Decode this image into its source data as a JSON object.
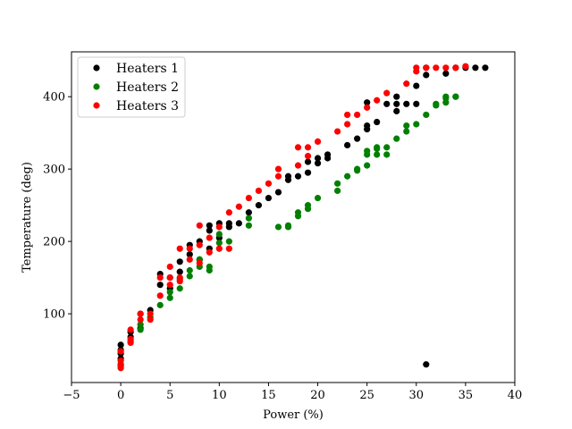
{
  "chart_data": {
    "type": "scatter",
    "xlabel": "Power (%)",
    "ylabel": "Temperature (deg)",
    "xlim": [
      -5,
      40
    ],
    "ylim": [
      5,
      462
    ],
    "xticks": [
      "−5",
      "0",
      "5",
      "10",
      "15",
      "20",
      "25",
      "30",
      "35",
      "40"
    ],
    "xtick_values": [
      -5,
      0,
      5,
      10,
      15,
      20,
      25,
      30,
      35,
      40
    ],
    "yticks": [
      "100",
      "200",
      "300",
      "400"
    ],
    "ytick_values": [
      100,
      200,
      300,
      400
    ],
    "grid": false,
    "legend": "top-left",
    "series": [
      {
        "name": "Heaters 1",
        "color": "#000000",
        "points": [
          [
            0,
            57
          ],
          [
            0,
            50
          ],
          [
            0,
            45
          ],
          [
            0,
            38
          ],
          [
            0,
            30
          ],
          [
            1,
            68
          ],
          [
            1,
            75
          ],
          [
            2,
            80
          ],
          [
            2,
            100
          ],
          [
            3,
            105
          ],
          [
            4,
            140
          ],
          [
            4,
            155
          ],
          [
            5,
            150
          ],
          [
            5,
            135
          ],
          [
            6,
            158
          ],
          [
            6,
            172
          ],
          [
            7,
            195
          ],
          [
            7,
            182
          ],
          [
            8,
            200
          ],
          [
            8,
            175
          ],
          [
            9,
            222
          ],
          [
            9,
            215
          ],
          [
            9,
            190
          ],
          [
            10,
            225
          ],
          [
            10,
            205
          ],
          [
            11,
            225
          ],
          [
            11,
            220
          ],
          [
            12,
            225
          ],
          [
            13,
            240
          ],
          [
            14,
            250
          ],
          [
            15,
            260
          ],
          [
            16,
            268
          ],
          [
            17,
            285
          ],
          [
            17,
            290
          ],
          [
            18,
            290
          ],
          [
            19,
            310
          ],
          [
            19,
            295
          ],
          [
            20,
            315
          ],
          [
            20,
            308
          ],
          [
            21,
            320
          ],
          [
            21,
            315
          ],
          [
            23,
            333
          ],
          [
            24,
            342
          ],
          [
            25,
            360
          ],
          [
            25,
            355
          ],
          [
            25,
            392
          ],
          [
            26,
            365
          ],
          [
            27,
            390
          ],
          [
            28,
            400
          ],
          [
            28,
            390
          ],
          [
            28,
            380
          ],
          [
            29,
            390
          ],
          [
            30,
            390
          ],
          [
            30,
            415
          ],
          [
            31,
            440
          ],
          [
            31,
            430
          ],
          [
            33,
            432
          ],
          [
            34,
            440
          ],
          [
            35,
            440
          ],
          [
            36,
            440
          ],
          [
            37,
            440
          ],
          [
            31,
            30
          ]
        ]
      },
      {
        "name": "Heaters 2",
        "color": "#008000",
        "points": [
          [
            0,
            30
          ],
          [
            0,
            28
          ],
          [
            1,
            62
          ],
          [
            2,
            78
          ],
          [
            2,
            85
          ],
          [
            3,
            95
          ],
          [
            4,
            112
          ],
          [
            5,
            122
          ],
          [
            5,
            130
          ],
          [
            6,
            135
          ],
          [
            6,
            148
          ],
          [
            7,
            152
          ],
          [
            7,
            160
          ],
          [
            8,
            165
          ],
          [
            8,
            175
          ],
          [
            9,
            160
          ],
          [
            9,
            165
          ],
          [
            10,
            198
          ],
          [
            10,
            210
          ],
          [
            11,
            200
          ],
          [
            13,
            222
          ],
          [
            13,
            232
          ],
          [
            16,
            220
          ],
          [
            17,
            220
          ],
          [
            17,
            222
          ],
          [
            18,
            235
          ],
          [
            18,
            240
          ],
          [
            19,
            245
          ],
          [
            19,
            250
          ],
          [
            20,
            260
          ],
          [
            22,
            270
          ],
          [
            22,
            280
          ],
          [
            23,
            290
          ],
          [
            24,
            298
          ],
          [
            24,
            300
          ],
          [
            25,
            305
          ],
          [
            25,
            320
          ],
          [
            25,
            325
          ],
          [
            26,
            320
          ],
          [
            26,
            328
          ],
          [
            26,
            330
          ],
          [
            27,
            320
          ],
          [
            27,
            330
          ],
          [
            28,
            342
          ],
          [
            29,
            352
          ],
          [
            29,
            360
          ],
          [
            30,
            362
          ],
          [
            31,
            375
          ],
          [
            32,
            388
          ],
          [
            32,
            390
          ],
          [
            33,
            392
          ],
          [
            33,
            398
          ],
          [
            33,
            400
          ],
          [
            34,
            400
          ],
          [
            34,
            400
          ]
        ]
      },
      {
        "name": "Heaters 3",
        "color": "#ff0000",
        "points": [
          [
            0,
            25
          ],
          [
            0,
            28
          ],
          [
            0,
            35
          ],
          [
            0,
            48
          ],
          [
            1,
            60
          ],
          [
            1,
            65
          ],
          [
            1,
            78
          ],
          [
            2,
            92
          ],
          [
            2,
            100
          ],
          [
            3,
            92
          ],
          [
            3,
            100
          ],
          [
            4,
            125
          ],
          [
            4,
            150
          ],
          [
            5,
            140
          ],
          [
            5,
            150
          ],
          [
            5,
            165
          ],
          [
            6,
            145
          ],
          [
            6,
            150
          ],
          [
            6,
            190
          ],
          [
            7,
            175
          ],
          [
            7,
            190
          ],
          [
            8,
            170
          ],
          [
            8,
            195
          ],
          [
            8,
            222
          ],
          [
            9,
            185
          ],
          [
            9,
            205
          ],
          [
            10,
            190
          ],
          [
            10,
            220
          ],
          [
            11,
            190
          ],
          [
            11,
            240
          ],
          [
            12,
            248
          ],
          [
            13,
            260
          ],
          [
            14,
            270
          ],
          [
            15,
            280
          ],
          [
            16,
            290
          ],
          [
            16,
            300
          ],
          [
            18,
            305
          ],
          [
            18,
            330
          ],
          [
            19,
            318
          ],
          [
            19,
            330
          ],
          [
            20,
            338
          ],
          [
            22,
            352
          ],
          [
            23,
            362
          ],
          [
            23,
            375
          ],
          [
            24,
            375
          ],
          [
            25,
            385
          ],
          [
            26,
            395
          ],
          [
            27,
            405
          ],
          [
            29,
            418
          ],
          [
            30,
            435
          ],
          [
            30,
            440
          ],
          [
            31,
            440
          ],
          [
            32,
            440
          ],
          [
            33,
            440
          ],
          [
            34,
            440
          ],
          [
            35,
            442
          ]
        ]
      }
    ]
  }
}
